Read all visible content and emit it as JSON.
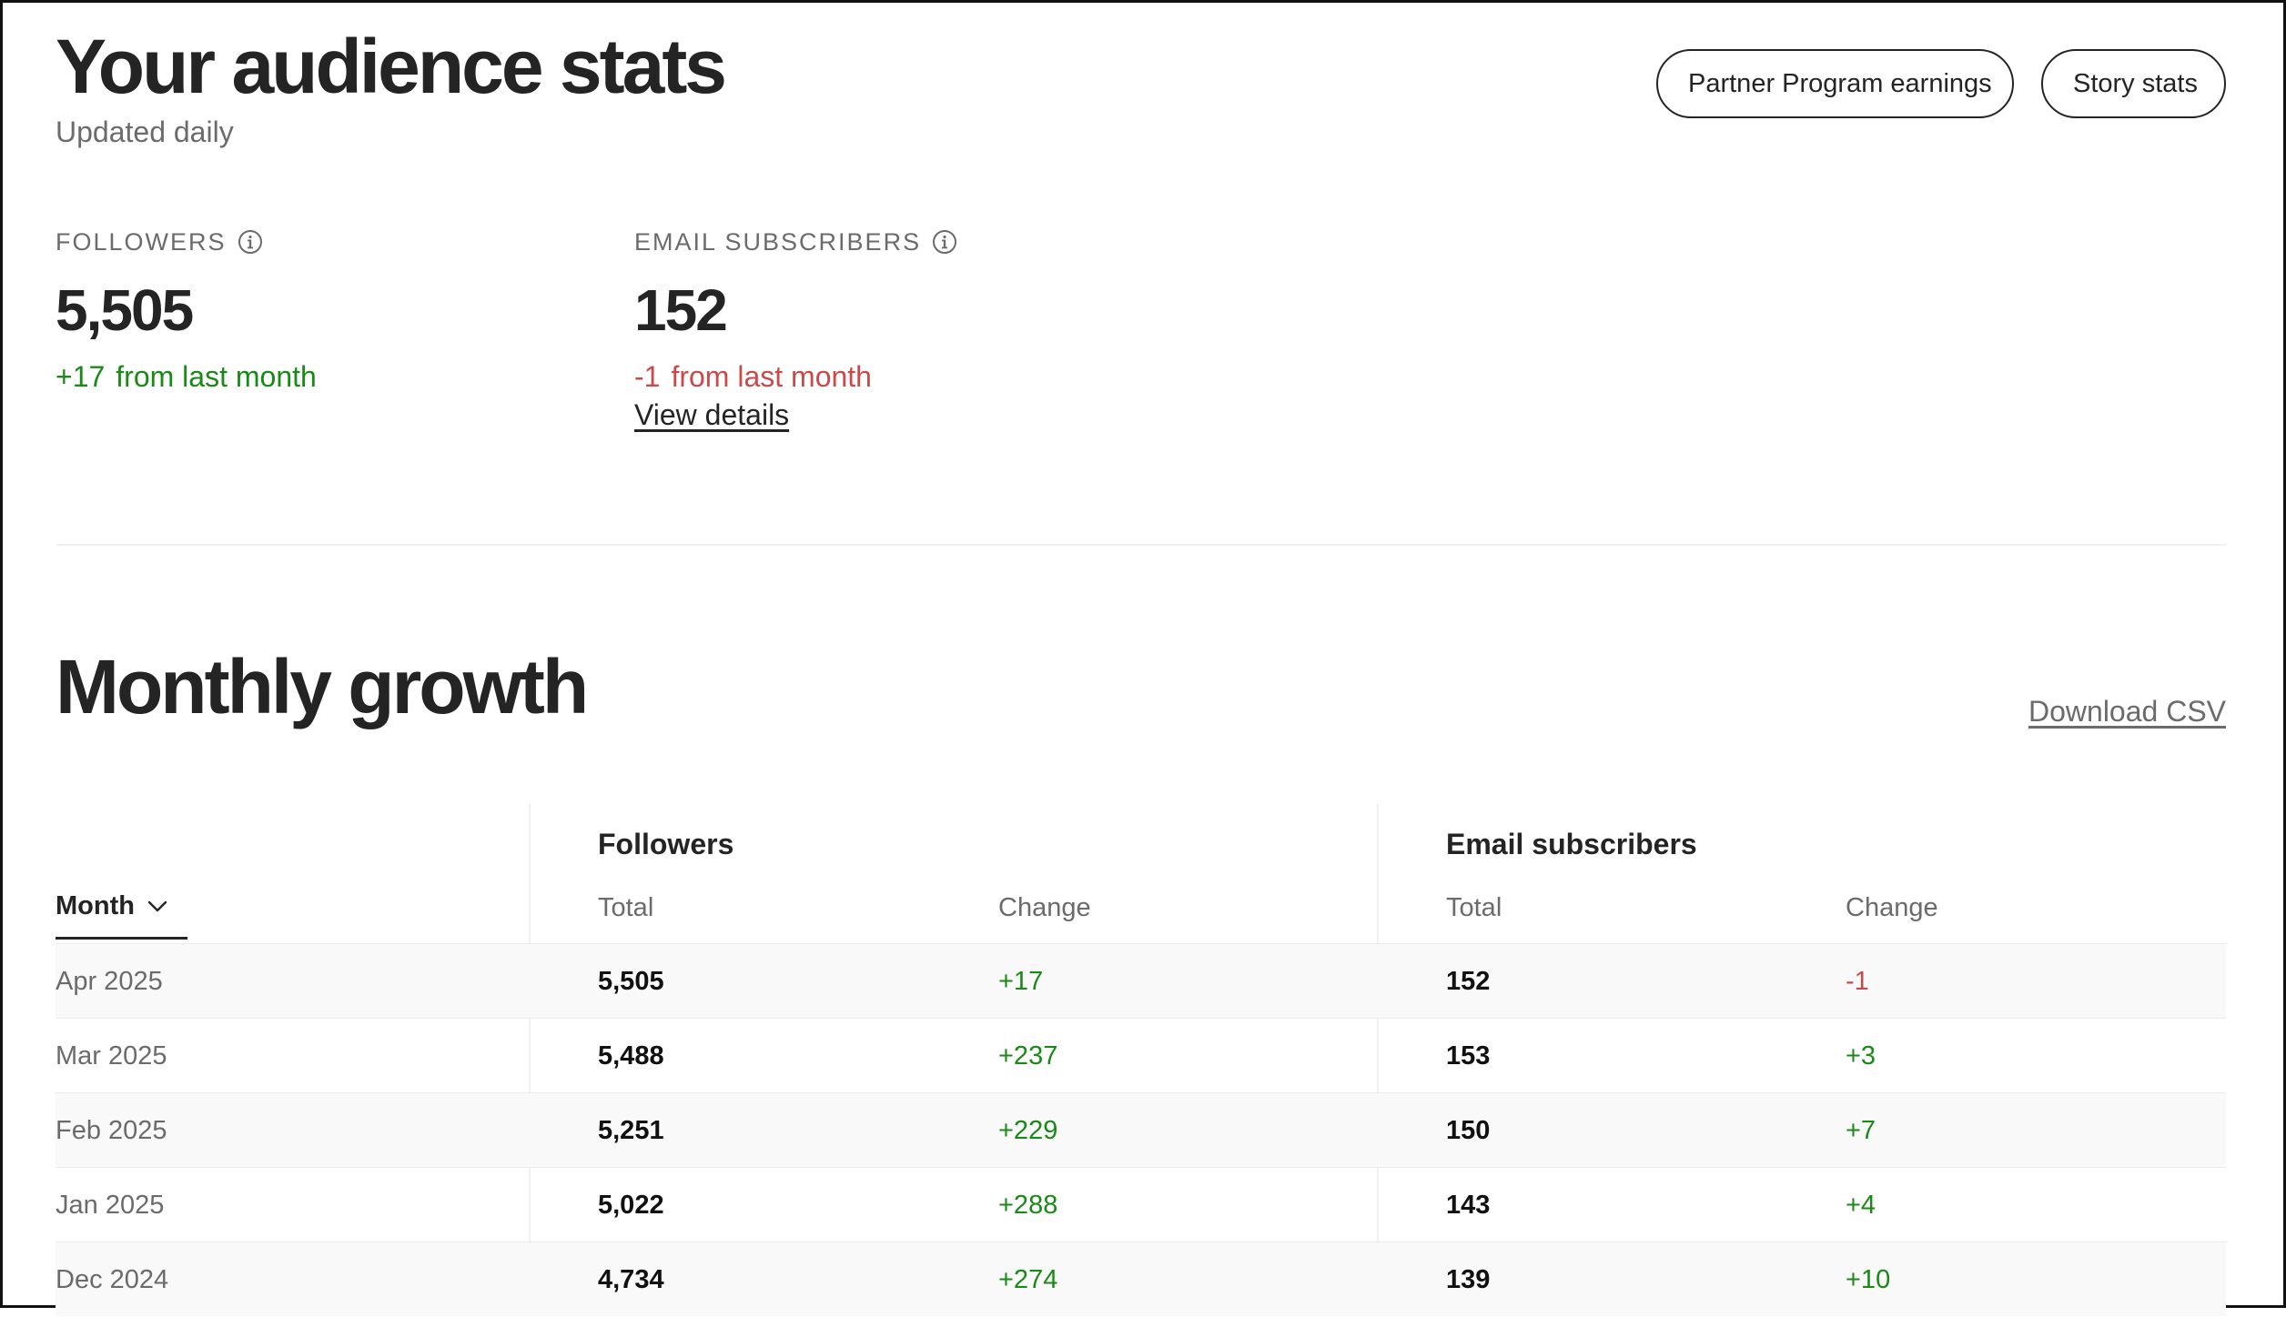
{
  "header": {
    "title": "Your audience stats",
    "subtitle": "Updated daily",
    "buttons": {
      "earnings": "Partner Program earnings",
      "story_stats": "Story stats"
    }
  },
  "stats": {
    "followers": {
      "label": "FOLLOWERS",
      "value": "5,505",
      "change": "+17",
      "change_suffix": "from last month"
    },
    "email": {
      "label": "EMAIL SUBSCRIBERS",
      "value": "152",
      "change": "-1",
      "change_suffix": "from last month",
      "link": "View details"
    }
  },
  "growth": {
    "title": "Monthly growth",
    "download": "Download CSV",
    "groups": {
      "followers": "Followers",
      "email": "Email subscribers"
    },
    "columns": {
      "month": "Month",
      "total": "Total",
      "change": "Change"
    },
    "rows": [
      {
        "month": "Apr 2025",
        "f_total": "5,505",
        "f_change": "+17",
        "e_total": "152",
        "e_change": "-1"
      },
      {
        "month": "Mar 2025",
        "f_total": "5,488",
        "f_change": "+237",
        "e_total": "153",
        "e_change": "+3"
      },
      {
        "month": "Feb 2025",
        "f_total": "5,251",
        "f_change": "+229",
        "e_total": "150",
        "e_change": "+7"
      },
      {
        "month": "Jan 2025",
        "f_total": "5,022",
        "f_change": "+288",
        "e_total": "143",
        "e_change": "+4"
      },
      {
        "month": "Dec 2024",
        "f_total": "4,734",
        "f_change": "+274",
        "e_total": "139",
        "e_change": "+10"
      }
    ]
  },
  "colors": {
    "positive": "#1a8917",
    "negative": "#c94a4a",
    "text": "#242424",
    "muted": "#6b6b6b"
  },
  "icons": {
    "info": "info-icon",
    "sort": "chevron-down-icon"
  }
}
